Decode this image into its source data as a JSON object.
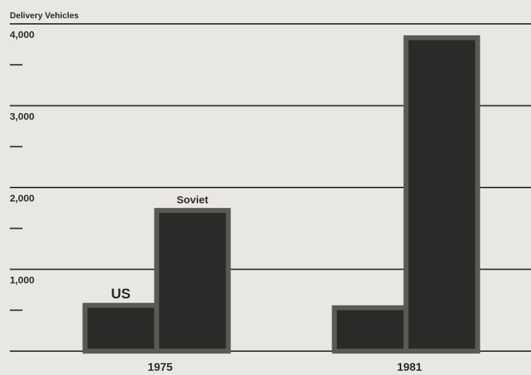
{
  "chart_data": {
    "type": "bar",
    "y_label": "Delivery Vehicles",
    "categories": [
      "1975",
      "1981"
    ],
    "series": [
      {
        "name": "US",
        "color": "#2b2a28",
        "values": [
          560,
          530
        ]
      },
      {
        "name": "Soviet",
        "color": "#2b2a28",
        "values": [
          1720,
          3830
        ]
      }
    ],
    "ylim": [
      0,
      4000
    ],
    "yticks": [
      0,
      {
        "value": 1000,
        "label": "1,000"
      },
      {
        "value": 2000,
        "label": "2,000"
      },
      {
        "value": 3000,
        "label": "3,000"
      },
      {
        "value": 4000,
        "label": "4,000"
      }
    ],
    "minor_yticks": [
      500,
      1500,
      2500,
      3500
    ],
    "grid": true
  }
}
